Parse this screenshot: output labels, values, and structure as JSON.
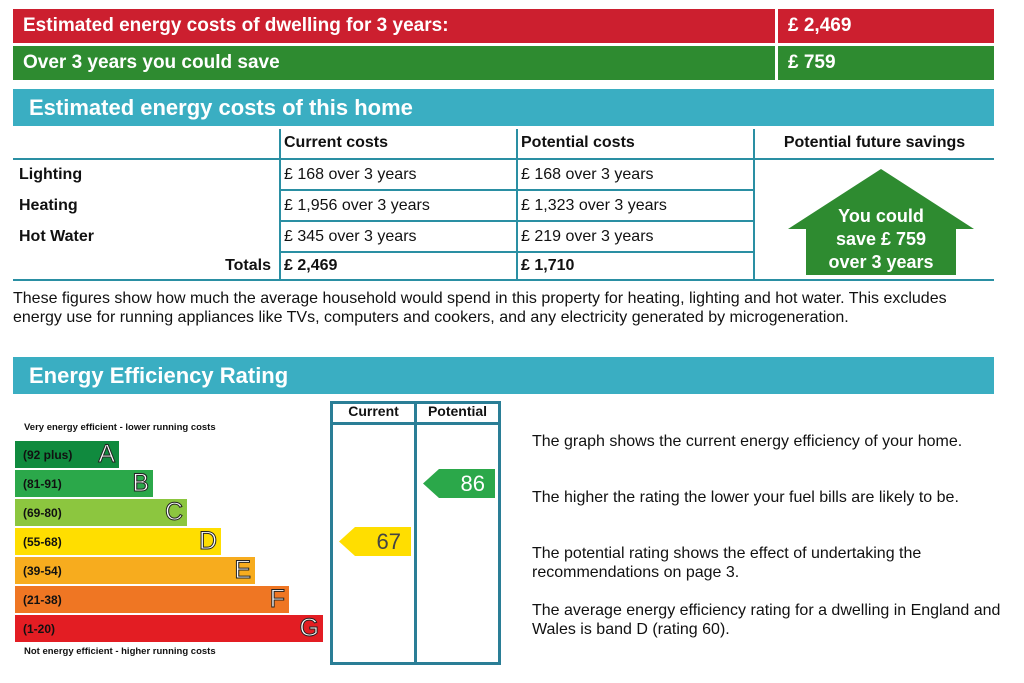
{
  "summary": {
    "cost_label": "Estimated energy costs of dwelling for 3 years:",
    "cost_value": "£ 2,469",
    "save_label": "Over 3 years you could save",
    "save_value": "£ 759"
  },
  "costs_section": {
    "heading": "Estimated energy costs of this home",
    "col_current": "Current costs",
    "col_potential": "Potential costs",
    "col_savings": "Potential future savings",
    "rows": [
      {
        "label": "Lighting",
        "current": "£ 168 over 3 years",
        "potential": "£ 168 over 3 years"
      },
      {
        "label": "Heating",
        "current": "£ 1,956 over 3 years",
        "potential": "£ 1,323 over 3 years"
      },
      {
        "label": "Hot Water",
        "current": "£ 345 over 3 years",
        "potential": "£ 219 over 3 years"
      }
    ],
    "totals_label": "Totals",
    "totals_current": "£ 2,469",
    "totals_potential": "£ 1,710",
    "savings_line1": "You could",
    "savings_line2": "save £ 759",
    "savings_line3": "over 3 years",
    "savings_color": "#2e8b30",
    "note": "These figures show how much the average household would spend in this property for heating, lighting and hot water. This excludes energy use for running appliances like TVs, computers and cookers, and any electricity generated by microgeneration."
  },
  "rating_section": {
    "heading": "Energy Efficiency Rating",
    "top_label": "Very energy efficient - lower running costs",
    "bottom_label": "Not energy efficient - higher running costs",
    "col_current": "Current",
    "col_potential": "Potential",
    "bands": [
      {
        "range": "(92 plus)",
        "letter": "A",
        "color": "#108a3e"
      },
      {
        "range": "(81-91)",
        "letter": "B",
        "color": "#2ba84a"
      },
      {
        "range": "(69-80)",
        "letter": "C",
        "color": "#8cc63f"
      },
      {
        "range": "(55-68)",
        "letter": "D",
        "color": "#ffde00"
      },
      {
        "range": "(39-54)",
        "letter": "E",
        "color": "#f7ac1e"
      },
      {
        "range": "(21-38)",
        "letter": "F",
        "color": "#ef7623"
      },
      {
        "range": "(1-20)",
        "letter": "G",
        "color": "#e31d23"
      }
    ],
    "current_rating": 67,
    "current_band": "D",
    "current_color": "#ffde00",
    "potential_rating": 86,
    "potential_band": "B",
    "potential_color": "#2ba84a",
    "paragraphs": [
      "The graph shows the current energy efficiency of your home.",
      "The higher the rating the lower your fuel bills are likely to be.",
      "The potential rating shows the effect of undertaking the recommendations on page 3.",
      "The average energy efficiency rating for a dwelling in England and Wales is band D (rating 60)."
    ]
  }
}
